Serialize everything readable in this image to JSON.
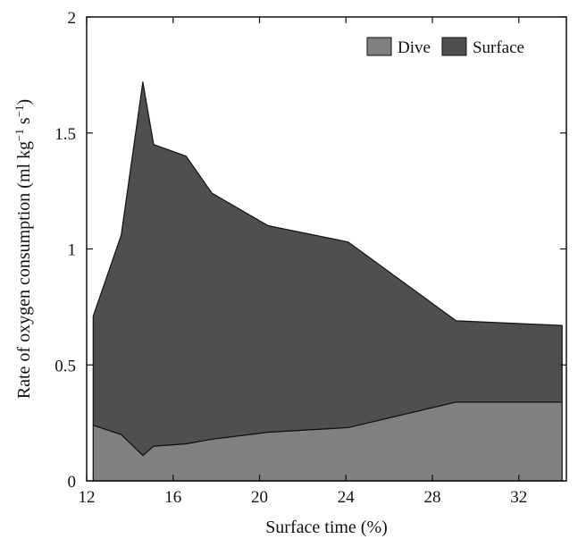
{
  "chart_data": {
    "type": "area",
    "stacked": true,
    "x": [
      12.3,
      13.6,
      14.6,
      15.1,
      16.6,
      17.8,
      20.4,
      24.1,
      29.1,
      34.0
    ],
    "series": [
      {
        "name": "Dive",
        "color": "#808080",
        "values": [
          0.24,
          0.2,
          0.11,
          0.15,
          0.16,
          0.18,
          0.21,
          0.23,
          0.34,
          0.34
        ]
      },
      {
        "name": "Surface",
        "color": "#4f4f4f",
        "values": [
          0.47,
          0.86,
          1.61,
          1.3,
          1.24,
          1.06,
          0.89,
          0.8,
          0.35,
          0.33
        ]
      }
    ],
    "xlabel": "Surface time (%)",
    "ylabel": "Rate of oxygen consumption (ml kg",
    "ylabel_sup1": "−1",
    "ylabel_mid": " s",
    "ylabel_sup2": "−1",
    "ylabel_close": ")",
    "xlim": [
      12,
      34.2
    ],
    "ylim": [
      0,
      2
    ],
    "xticks": [
      12,
      16,
      20,
      24,
      28,
      32
    ],
    "xtick_labels": [
      "12",
      "16",
      "20",
      "24",
      "28",
      "32"
    ],
    "yticks": [
      0,
      0.5,
      1,
      1.5,
      2
    ],
    "ytick_labels": [
      "0",
      "0.5",
      "1",
      "1.5",
      "2"
    ],
    "legend_position": "top-right",
    "grid": false
  }
}
